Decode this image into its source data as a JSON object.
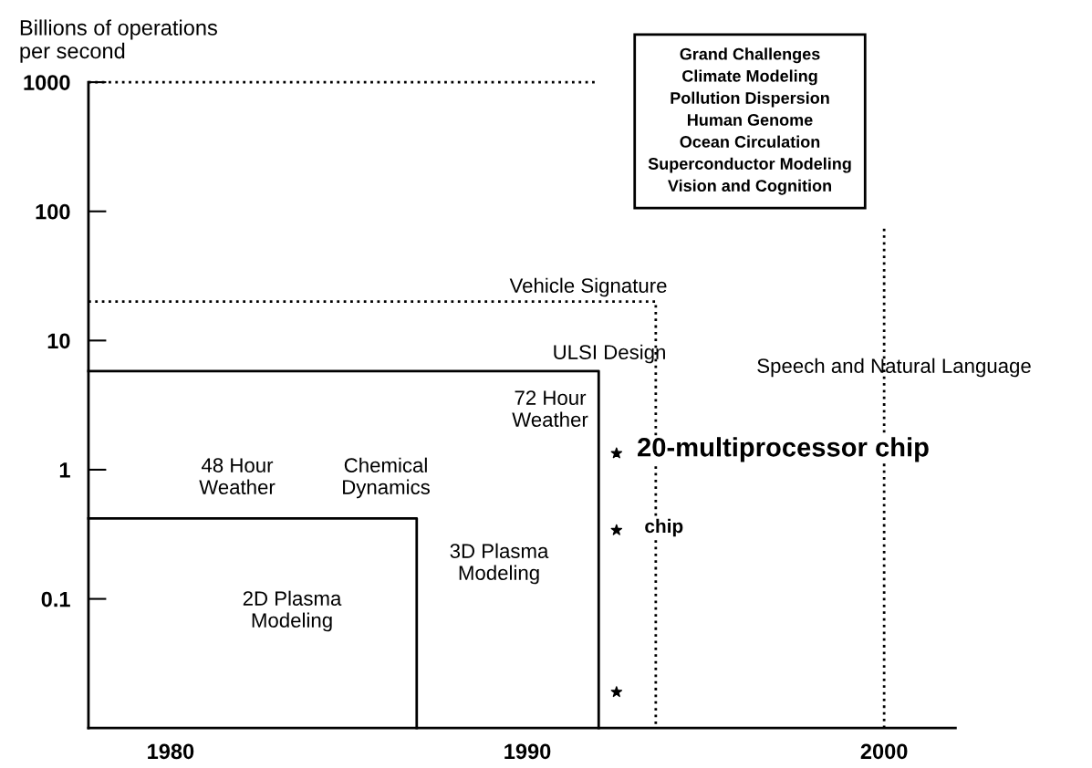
{
  "chart_data": {
    "type": "line",
    "ylabel": "Billions of operations\nper second",
    "log": "y",
    "xlim": [
      1977.7,
      2002
    ],
    "xticks": [
      1980,
      1990,
      2000
    ],
    "ylim": [
      0.01,
      1000
    ],
    "yticks": [
      0.1,
      1,
      10,
      100,
      1000
    ],
    "grid": false,
    "marker": "none",
    "series": [
      {
        "line_style": "solid",
        "color": "#000000",
        "x": [
          1977.7,
          1986.9,
          1986.9
        ],
        "values": [
          0.42,
          0.42,
          0.01
        ]
      },
      {
        "line_style": "solid",
        "color": "#000000",
        "x": [
          1977.7,
          1992.0,
          1992.0
        ],
        "values": [
          5.8,
          5.8,
          0.01
        ]
      },
      {
        "line_style": "dotted",
        "color": "#000000",
        "x": [
          1977.7,
          1993.6,
          1993.6
        ],
        "values": [
          20,
          20,
          0.01
        ]
      },
      {
        "line_style": "dotted",
        "color": "#000000",
        "x": [
          1977.7,
          1992.0
        ],
        "values": [
          1000,
          1000
        ]
      },
      {
        "line_style": "dotted",
        "color": "#000000",
        "x": [
          2000,
          2000
        ],
        "values": [
          0.01,
          74
        ]
      },
      {
        "type": "scatter",
        "marker": "star",
        "color": "#000000",
        "x": [
          1992.5,
          1992.5,
          1992.5
        ],
        "values": [
          1.34,
          0.34,
          0.019
        ]
      }
    ],
    "annotations": [
      "Grand Challenges\nClimate Modeling\nPollution Dispersion\nHuman Genome\nOcean Circulation\nSuperconductor Modeling\nVision and Cognition",
      "Vehicle Signature",
      "ULSI Design",
      "Speech and Natural Language",
      "72 Hour\nWeather",
      "48 Hour\nWeather",
      "Chemical\nDynamics",
      "3D Plasma\nModeling",
      "2D Plasma\nModeling",
      {
        "text": "20-multiprocessor chip",
        "x": 1992.5,
        "y": 1.34
      },
      {
        "text": "chip",
        "x": 1992.5,
        "y": 0.34
      }
    ]
  }
}
